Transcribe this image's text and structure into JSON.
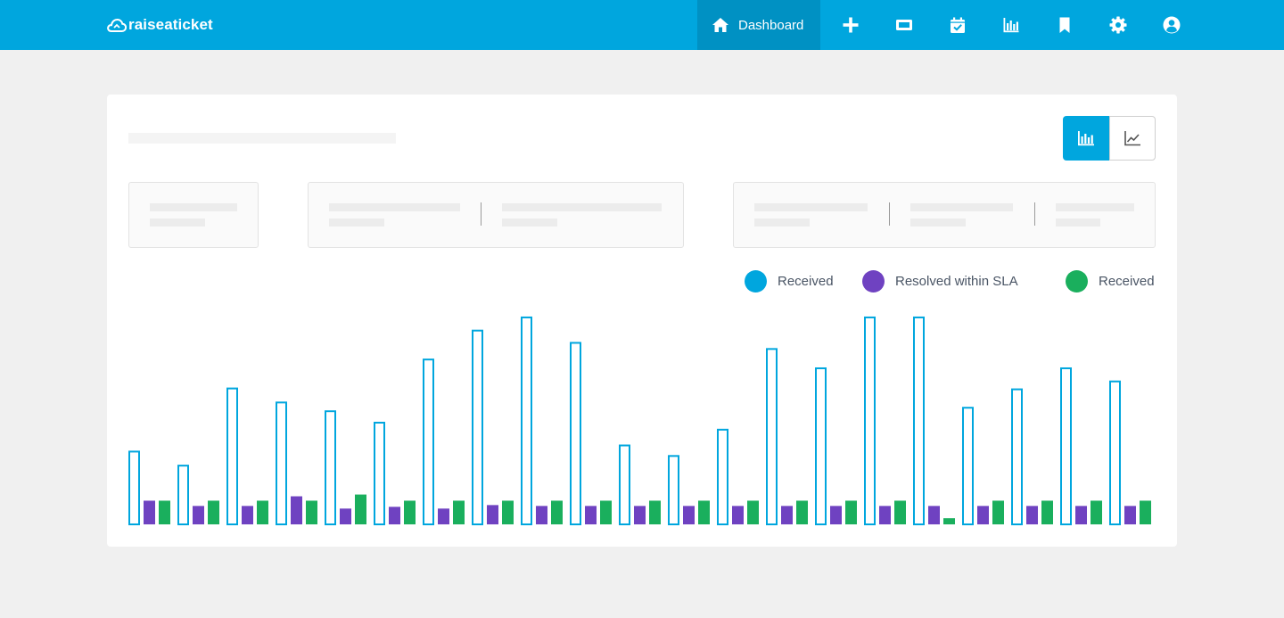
{
  "app": {
    "brand": "raiseaticket"
  },
  "nav": {
    "dashboard_label": "Dashboard",
    "icons": [
      "home-icon",
      "plus-icon",
      "ticket-icon",
      "calendar-check-icon",
      "bar-chart-icon",
      "bookmark-icon",
      "gear-icon",
      "user-circle-icon"
    ]
  },
  "colors": {
    "primary": "#00a6de",
    "primary_dark": "#0091c3",
    "received": "#00a6de",
    "resolved_sla": "#6f42c1",
    "received_green": "#1aaf5d"
  },
  "view_toggle": {
    "active": "bar-chart",
    "options": [
      "bar-chart",
      "line-chart"
    ]
  },
  "legend": [
    {
      "label": "Received",
      "color": "#00a6de"
    },
    {
      "label": "Resolved within SLA",
      "color": "#6f42c1"
    },
    {
      "label": "Received",
      "color": "#1aaf5d"
    }
  ],
  "chart_data": {
    "type": "bar",
    "title": "",
    "xlabel": "",
    "ylabel": "",
    "categories": [
      "",
      "",
      "",
      "",
      "",
      "",
      "",
      "",
      "",
      "",
      "",
      "",
      "",
      "",
      "",
      "",
      "",
      "",
      "",
      "",
      ""
    ],
    "ylim": [
      0,
      240
    ],
    "grid": false,
    "legend_position": "top-right",
    "series": [
      {
        "name": "Received",
        "style": "outline",
        "color": "#00a6de",
        "values": [
          84,
          68,
          156,
          140,
          130,
          117,
          189,
          222,
          237,
          208,
          91,
          79,
          109,
          201,
          179,
          237,
          237,
          134,
          155,
          179,
          164
        ]
      },
      {
        "name": "Resolved within SLA",
        "style": "filled",
        "color": "#6f42c1",
        "values": [
          27,
          21,
          21,
          32,
          18,
          20,
          18,
          22,
          21,
          21,
          21,
          21,
          21,
          21,
          21,
          21,
          21,
          21,
          21,
          21,
          21
        ]
      },
      {
        "name": "Received",
        "style": "filled",
        "color": "#1aaf5d",
        "values": [
          27,
          27,
          27,
          27,
          34,
          27,
          27,
          27,
          27,
          27,
          27,
          27,
          27,
          27,
          27,
          27,
          7,
          27,
          27,
          27,
          27
        ]
      }
    ]
  }
}
